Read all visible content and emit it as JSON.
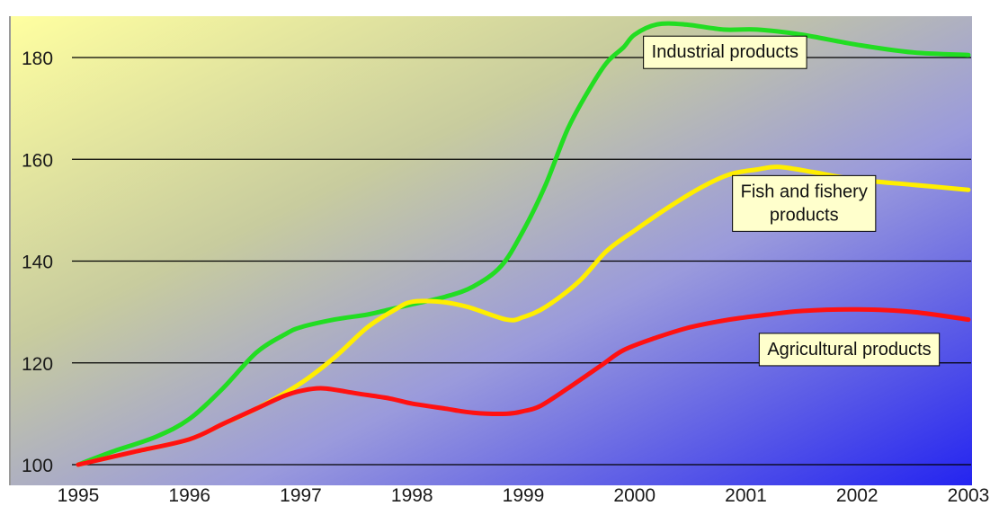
{
  "chart_data": {
    "type": "line",
    "title": "",
    "xlabel": "",
    "ylabel": "",
    "x": [
      1995,
      1996,
      1997,
      1998,
      1999,
      2000,
      2001,
      2002,
      2003
    ],
    "x_tick_labels": [
      "1995",
      "1996",
      "1997",
      "1998",
      "1999",
      "2000",
      "2001",
      "2002",
      "2003"
    ],
    "xlim": [
      1995,
      2003
    ],
    "y_ticks": [
      100,
      120,
      140,
      160,
      180
    ],
    "y_tick_labels": [
      "100",
      "120",
      "140",
      "160",
      "180"
    ],
    "ylim": [
      100,
      187
    ],
    "grid": "horizontal",
    "background": "diagonal gradient yellow to blue",
    "series": [
      {
        "name": "Industrial products",
        "color": "#22dd22",
        "points": [
          [
            1995,
            100
          ],
          [
            1995.3,
            102.5
          ],
          [
            1995.7,
            105.5
          ],
          [
            1996.0,
            109
          ],
          [
            1996.3,
            115
          ],
          [
            1996.6,
            122
          ],
          [
            1996.85,
            125.5
          ],
          [
            1997.0,
            127
          ],
          [
            1997.3,
            128.5
          ],
          [
            1997.6,
            129.5
          ],
          [
            1997.8,
            130.5
          ],
          [
            1998.0,
            131.5
          ],
          [
            1998.3,
            133
          ],
          [
            1998.55,
            135
          ],
          [
            1998.8,
            139
          ],
          [
            1999.0,
            146
          ],
          [
            1999.2,
            155
          ],
          [
            1999.4,
            166
          ],
          [
            1999.6,
            174
          ],
          [
            1999.75,
            179
          ],
          [
            1999.9,
            182
          ],
          [
            2000.0,
            184.5
          ],
          [
            2000.2,
            186.5
          ],
          [
            2000.45,
            186.5
          ],
          [
            2000.8,
            185.5
          ],
          [
            2001.1,
            185.5
          ],
          [
            2001.5,
            184.5
          ],
          [
            2002.0,
            182.5
          ],
          [
            2002.5,
            181
          ],
          [
            2003.0,
            180.5
          ]
        ]
      },
      {
        "name": "Fish and fishery products",
        "label_lines": [
          "Fish and fishery",
          "products"
        ],
        "color": "#ffee00",
        "points": [
          [
            1995,
            100
          ],
          [
            1995.5,
            102.5
          ],
          [
            1996.0,
            105
          ],
          [
            1996.3,
            108
          ],
          [
            1996.6,
            111
          ],
          [
            1997.0,
            116
          ],
          [
            1997.3,
            121
          ],
          [
            1997.6,
            127
          ],
          [
            1997.85,
            130.5
          ],
          [
            1998.0,
            132
          ],
          [
            1998.25,
            132
          ],
          [
            1998.5,
            131
          ],
          [
            1998.85,
            128.5
          ],
          [
            1999.0,
            129
          ],
          [
            1999.2,
            131
          ],
          [
            1999.5,
            136
          ],
          [
            1999.75,
            142
          ],
          [
            2000.0,
            146
          ],
          [
            2000.3,
            150.5
          ],
          [
            2000.6,
            154.5
          ],
          [
            2000.85,
            157
          ],
          [
            2001.1,
            158
          ],
          [
            2001.3,
            158.5
          ],
          [
            2001.6,
            157.5
          ],
          [
            2002.0,
            156
          ],
          [
            2002.5,
            155
          ],
          [
            2003.0,
            154
          ]
        ]
      },
      {
        "name": "Agricultural products",
        "color": "#ff1111",
        "points": [
          [
            1995,
            100
          ],
          [
            1995.5,
            102.5
          ],
          [
            1996.0,
            105
          ],
          [
            1996.3,
            108
          ],
          [
            1996.6,
            111
          ],
          [
            1996.85,
            113.5
          ],
          [
            1997.0,
            114.5
          ],
          [
            1997.2,
            115
          ],
          [
            1997.5,
            114
          ],
          [
            1997.8,
            113
          ],
          [
            1998.0,
            112
          ],
          [
            1998.3,
            111
          ],
          [
            1998.55,
            110.2
          ],
          [
            1998.85,
            110
          ],
          [
            1999.0,
            110.5
          ],
          [
            1999.15,
            111.5
          ],
          [
            1999.4,
            115
          ],
          [
            1999.7,
            119.5
          ],
          [
            1999.9,
            122.5
          ],
          [
            2000.2,
            125
          ],
          [
            2000.5,
            127
          ],
          [
            2000.85,
            128.5
          ],
          [
            2001.2,
            129.5
          ],
          [
            2001.5,
            130.2
          ],
          [
            2002.0,
            130.5
          ],
          [
            2002.5,
            130
          ],
          [
            2003.0,
            128.5
          ]
        ]
      }
    ],
    "annotations": [
      {
        "series": "Industrial products",
        "lines": [
          "Industrial products"
        ],
        "at": [
          2000.08,
          184.2
        ]
      },
      {
        "series": "Fish and fishery products",
        "lines": [
          "Fish and fishery",
          "products"
        ],
        "at": [
          2000.88,
          156.8
        ]
      },
      {
        "series": "Agricultural products",
        "lines": [
          "Agricultural products"
        ],
        "at": [
          2001.12,
          125.8
        ]
      }
    ]
  }
}
